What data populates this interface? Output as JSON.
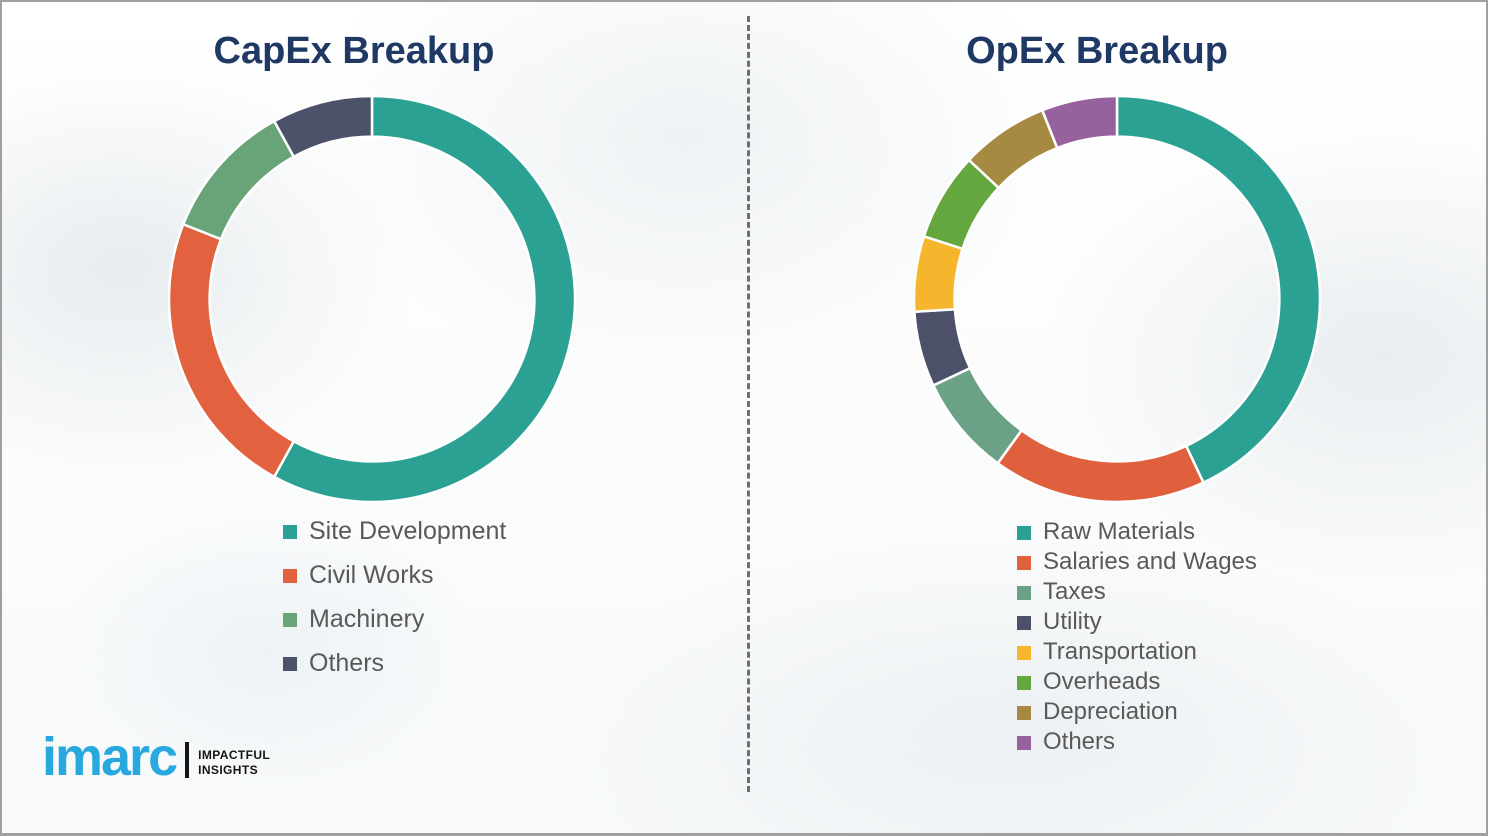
{
  "chart_data": [
    {
      "type": "pie",
      "subtype": "donut",
      "title": "CapEx Breakup",
      "categories": [
        "Site Development",
        "Civil Works",
        "Machinery",
        "Others"
      ],
      "values": [
        58,
        23,
        11,
        8
      ],
      "colors": [
        "#2AA192",
        "#E2613F",
        "#69A378",
        "#4D526B"
      ],
      "legend_position": "below-left",
      "donut_hole_ratio": 0.8,
      "start_angle_deg": 0,
      "direction": "clockwise"
    },
    {
      "type": "pie",
      "subtype": "donut",
      "title": "OpEx Breakup",
      "categories": [
        "Raw Materials",
        "Salaries and Wages",
        "Taxes",
        "Utility",
        "Transportation",
        "Overheads",
        "Depreciation",
        "Others"
      ],
      "values": [
        43,
        17,
        8,
        6,
        6,
        7,
        7,
        6
      ],
      "colors": [
        "#2AA192",
        "#E0603D",
        "#6BA287",
        "#4C5069",
        "#F5B52C",
        "#64A73F",
        "#A68A42",
        "#96619C"
      ],
      "legend_position": "below-left",
      "donut_hole_ratio": 0.8,
      "start_angle_deg": 0,
      "direction": "clockwise"
    }
  ],
  "logo": {
    "brand": "imarc",
    "tagline": [
      "IMPACTFUL",
      "INSIGHTS"
    ],
    "brand_color": "#29A8E0"
  },
  "styles": {
    "title_color": "#1F3864",
    "legend_text_color": "#595959",
    "divider_color": "#6F6F6F",
    "segment_gap_color": "#FFFFFF"
  }
}
